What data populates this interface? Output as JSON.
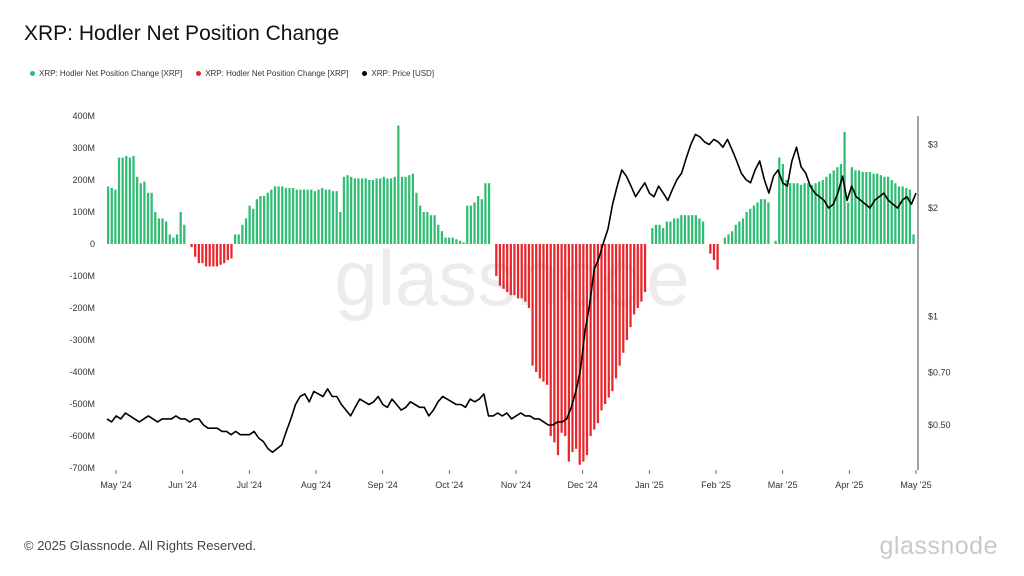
{
  "title": "XRP: Hodler Net Position Change",
  "legend": [
    {
      "label": "XRP: Hodler Net Position Change [XRP]",
      "color": "#2ebd72"
    },
    {
      "label": "XRP: Hodler Net Position Change [XRP]",
      "color": "#e8262b"
    },
    {
      "label": "XRP: Price [USD]",
      "color": "#000000"
    }
  ],
  "watermark": "glassnode",
  "footer": "© 2025 Glassnode. All Rights Reserved.",
  "brand": "glassnode",
  "chart_data": {
    "type": "bar",
    "title": "XRP: Hodler Net Position Change",
    "x_ticks": [
      "May '24",
      "Jun '24",
      "Jul '24",
      "Aug '24",
      "Sep '24",
      "Oct '24",
      "Nov '24",
      "Dec '24",
      "Jan '25",
      "Feb '25",
      "Mar '25",
      "Apr '25",
      "May '25"
    ],
    "y_left_ticks": [
      "400M",
      "300M",
      "200M",
      "100M",
      "0",
      "-100M",
      "-200M",
      "-300M",
      "-400M",
      "-500M",
      "-600M",
      "-700M"
    ],
    "y_left_range": [
      -700,
      400
    ],
    "y_left_unit": "M",
    "y_right_ticks": [
      "$3",
      "$2",
      "$1",
      "$0.70",
      "$0.50"
    ],
    "y_right_scale": "log",
    "y_right_range": [
      0.38,
      3.6
    ],
    "grid": false,
    "legend_position": "top-left",
    "positive_color": "#2ebd72",
    "negative_color": "#e8262b",
    "price_color": "#000000",
    "series": [
      {
        "name": "XRP: Hodler Net Position Change [XRP]",
        "unit": "M",
        "x_range": [
          "2024-04-29",
          "2025-04-30"
        ],
        "values": [
          180,
          175,
          170,
          270,
          270,
          275,
          270,
          275,
          210,
          190,
          195,
          160,
          160,
          100,
          80,
          80,
          70,
          30,
          20,
          30,
          100,
          60,
          0,
          -10,
          -40,
          -60,
          -60,
          -70,
          -70,
          -70,
          -70,
          -65,
          -60,
          -50,
          -45,
          30,
          30,
          60,
          80,
          120,
          110,
          140,
          150,
          150,
          160,
          170,
          180,
          180,
          180,
          175,
          175,
          175,
          170,
          170,
          170,
          170,
          170,
          165,
          170,
          175,
          170,
          170,
          165,
          165,
          100,
          210,
          215,
          210,
          205,
          205,
          205,
          205,
          200,
          200,
          205,
          205,
          210,
          205,
          205,
          210,
          370,
          210,
          210,
          215,
          220,
          160,
          120,
          100,
          100,
          90,
          90,
          60,
          40,
          20,
          20,
          20,
          15,
          10,
          5,
          120,
          120,
          130,
          150,
          140,
          190,
          190,
          0,
          -100,
          -130,
          -140,
          -150,
          -160,
          -160,
          -170,
          -170,
          -180,
          -200,
          -380,
          -400,
          -420,
          -430,
          -440,
          -600,
          -620,
          -660,
          -590,
          -600,
          -680,
          -650,
          -640,
          -690,
          -680,
          -660,
          -600,
          -580,
          -560,
          -520,
          -500,
          -480,
          -460,
          -420,
          -380,
          -340,
          -300,
          -260,
          -220,
          -200,
          -180,
          -150,
          0,
          50,
          60,
          60,
          50,
          70,
          70,
          80,
          80,
          90,
          90,
          90,
          90,
          90,
          80,
          70,
          0,
          -30,
          -50,
          -80,
          0,
          20,
          30,
          40,
          60,
          70,
          80,
          100,
          110,
          120,
          130,
          140,
          140,
          130,
          0,
          10,
          270,
          250,
          200,
          190,
          190,
          190,
          185,
          190,
          190,
          185,
          190,
          195,
          200,
          210,
          220,
          230,
          240,
          250,
          350,
          130,
          240,
          230,
          230,
          225,
          225,
          225,
          220,
          220,
          215,
          210,
          210,
          200,
          190,
          180,
          180,
          175,
          170,
          30
        ]
      },
      {
        "name": "XRP: Price [USD]",
        "unit": "USD",
        "x_range": [
          "2024-04-29",
          "2025-04-30"
        ],
        "values": [
          0.52,
          0.51,
          0.53,
          0.52,
          0.54,
          0.53,
          0.52,
          0.51,
          0.52,
          0.53,
          0.52,
          0.51,
          0.52,
          0.52,
          0.52,
          0.53,
          0.52,
          0.52,
          0.51,
          0.52,
          0.52,
          0.5,
          0.49,
          0.49,
          0.49,
          0.48,
          0.48,
          0.47,
          0.48,
          0.47,
          0.47,
          0.47,
          0.48,
          0.46,
          0.45,
          0.43,
          0.42,
          0.43,
          0.44,
          0.48,
          0.52,
          0.57,
          0.6,
          0.61,
          0.58,
          0.62,
          0.61,
          0.6,
          0.63,
          0.6,
          0.6,
          0.57,
          0.55,
          0.53,
          0.56,
          0.59,
          0.58,
          0.57,
          0.58,
          0.6,
          0.57,
          0.56,
          0.59,
          0.57,
          0.55,
          0.56,
          0.58,
          0.57,
          0.56,
          0.56,
          0.53,
          0.55,
          0.58,
          0.6,
          0.59,
          0.58,
          0.57,
          0.57,
          0.56,
          0.59,
          0.58,
          0.59,
          0.61,
          0.53,
          0.53,
          0.54,
          0.53,
          0.54,
          0.52,
          0.53,
          0.54,
          0.53,
          0.53,
          0.52,
          0.52,
          0.51,
          0.5,
          0.5,
          0.51,
          0.51,
          0.52,
          0.56,
          0.62,
          0.71,
          0.91,
          1.08,
          1.35,
          1.45,
          1.6,
          1.75,
          2.05,
          2.3,
          2.55,
          2.45,
          2.3,
          2.15,
          2.25,
          2.35,
          2.2,
          2.15,
          2.3,
          2.2,
          2.1,
          2.25,
          2.4,
          2.5,
          2.75,
          3.0,
          3.2,
          3.15,
          3.05,
          3.0,
          3.1,
          3.05,
          2.95,
          3.1,
          2.9,
          2.7,
          2.5,
          2.4,
          2.35,
          2.55,
          2.7,
          2.4,
          2.2,
          2.45,
          2.55,
          2.35,
          2.3,
          2.7,
          2.95,
          2.6,
          2.5,
          2.3,
          2.2,
          2.15,
          2.1,
          2.0,
          2.05,
          2.2,
          2.45,
          2.1,
          2.3,
          2.15,
          2.1,
          2.05,
          2.0,
          2.1,
          2.15,
          2.2,
          2.1,
          2.05,
          2.0,
          2.1,
          2.15,
          2.05,
          2.2
        ]
      }
    ]
  }
}
